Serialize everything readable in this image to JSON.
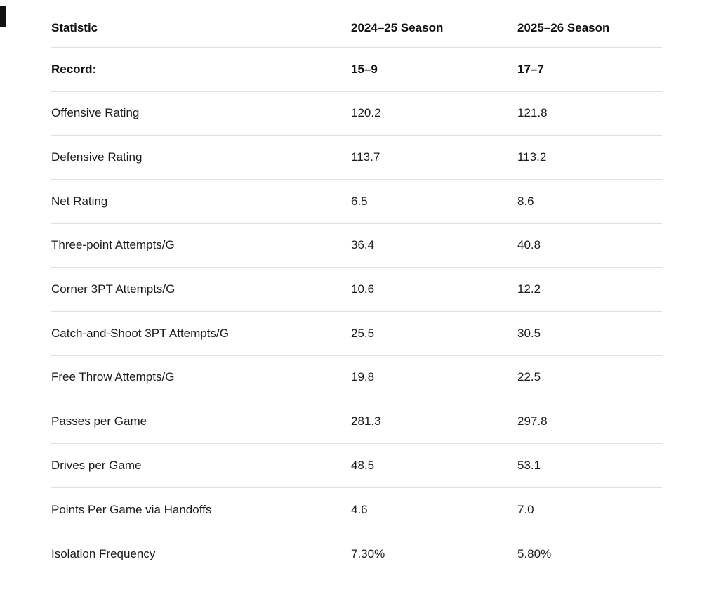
{
  "page": {
    "background_color": "#ffffff",
    "text_color": "#1b1b1b",
    "divider_color": "#e0e0e0"
  },
  "table": {
    "headers": {
      "statistic": "Statistic",
      "season_2425": "2024–25 Season",
      "season_2526": "2025–26 Season"
    },
    "rows": [
      {
        "label": "Record:",
        "s2425": "15–9",
        "s2526": "17–7"
      },
      {
        "label": "Offensive Rating",
        "s2425": "120.2",
        "s2526": "121.8"
      },
      {
        "label": "Defensive Rating",
        "s2425": "113.7",
        "s2526": "113.2"
      },
      {
        "label": "Net Rating",
        "s2425": "6.5",
        "s2526": "8.6"
      },
      {
        "label": "Three-point Attempts/G",
        "s2425": "36.4",
        "s2526": "40.8"
      },
      {
        "label": "Corner 3PT Attempts/G",
        "s2425": "10.6",
        "s2526": "12.2"
      },
      {
        "label": "Catch-and-Shoot 3PT Attempts/G",
        "s2425": "25.5",
        "s2526": "30.5"
      },
      {
        "label": "Free Throw Attempts/G",
        "s2425": "19.8",
        "s2526": "22.5"
      },
      {
        "label": "Passes per Game",
        "s2425": "281.3",
        "s2526": "297.8"
      },
      {
        "label": "Drives per Game",
        "s2425": "48.5",
        "s2526": "53.1"
      },
      {
        "label": "Points Per Game via Handoffs",
        "s2425": "4.6",
        "s2526": "7.0"
      },
      {
        "label": "Isolation Frequency",
        "s2425": "7.30%",
        "s2526": "5.80%"
      }
    ]
  },
  "chart_data": {
    "type": "table",
    "title": "",
    "columns": [
      "Statistic",
      "2024–25 Season",
      "2025–26 Season"
    ],
    "rows": [
      [
        "Record:",
        "15–9",
        "17–7"
      ],
      [
        "Offensive Rating",
        120.2,
        121.8
      ],
      [
        "Defensive Rating",
        113.7,
        113.2
      ],
      [
        "Net Rating",
        6.5,
        8.6
      ],
      [
        "Three-point Attempts/G",
        36.4,
        40.8
      ],
      [
        "Corner 3PT Attempts/G",
        10.6,
        12.2
      ],
      [
        "Catch-and-Shoot 3PT Attempts/G",
        25.5,
        30.5
      ],
      [
        "Free Throw Attempts/G",
        19.8,
        22.5
      ],
      [
        "Passes per Game",
        281.3,
        297.8
      ],
      [
        "Drives per Game",
        48.5,
        53.1
      ],
      [
        "Points Per Game via Handoffs",
        4.6,
        7.0
      ],
      [
        "Isolation Frequency",
        "7.30%",
        "5.80%"
      ]
    ]
  }
}
